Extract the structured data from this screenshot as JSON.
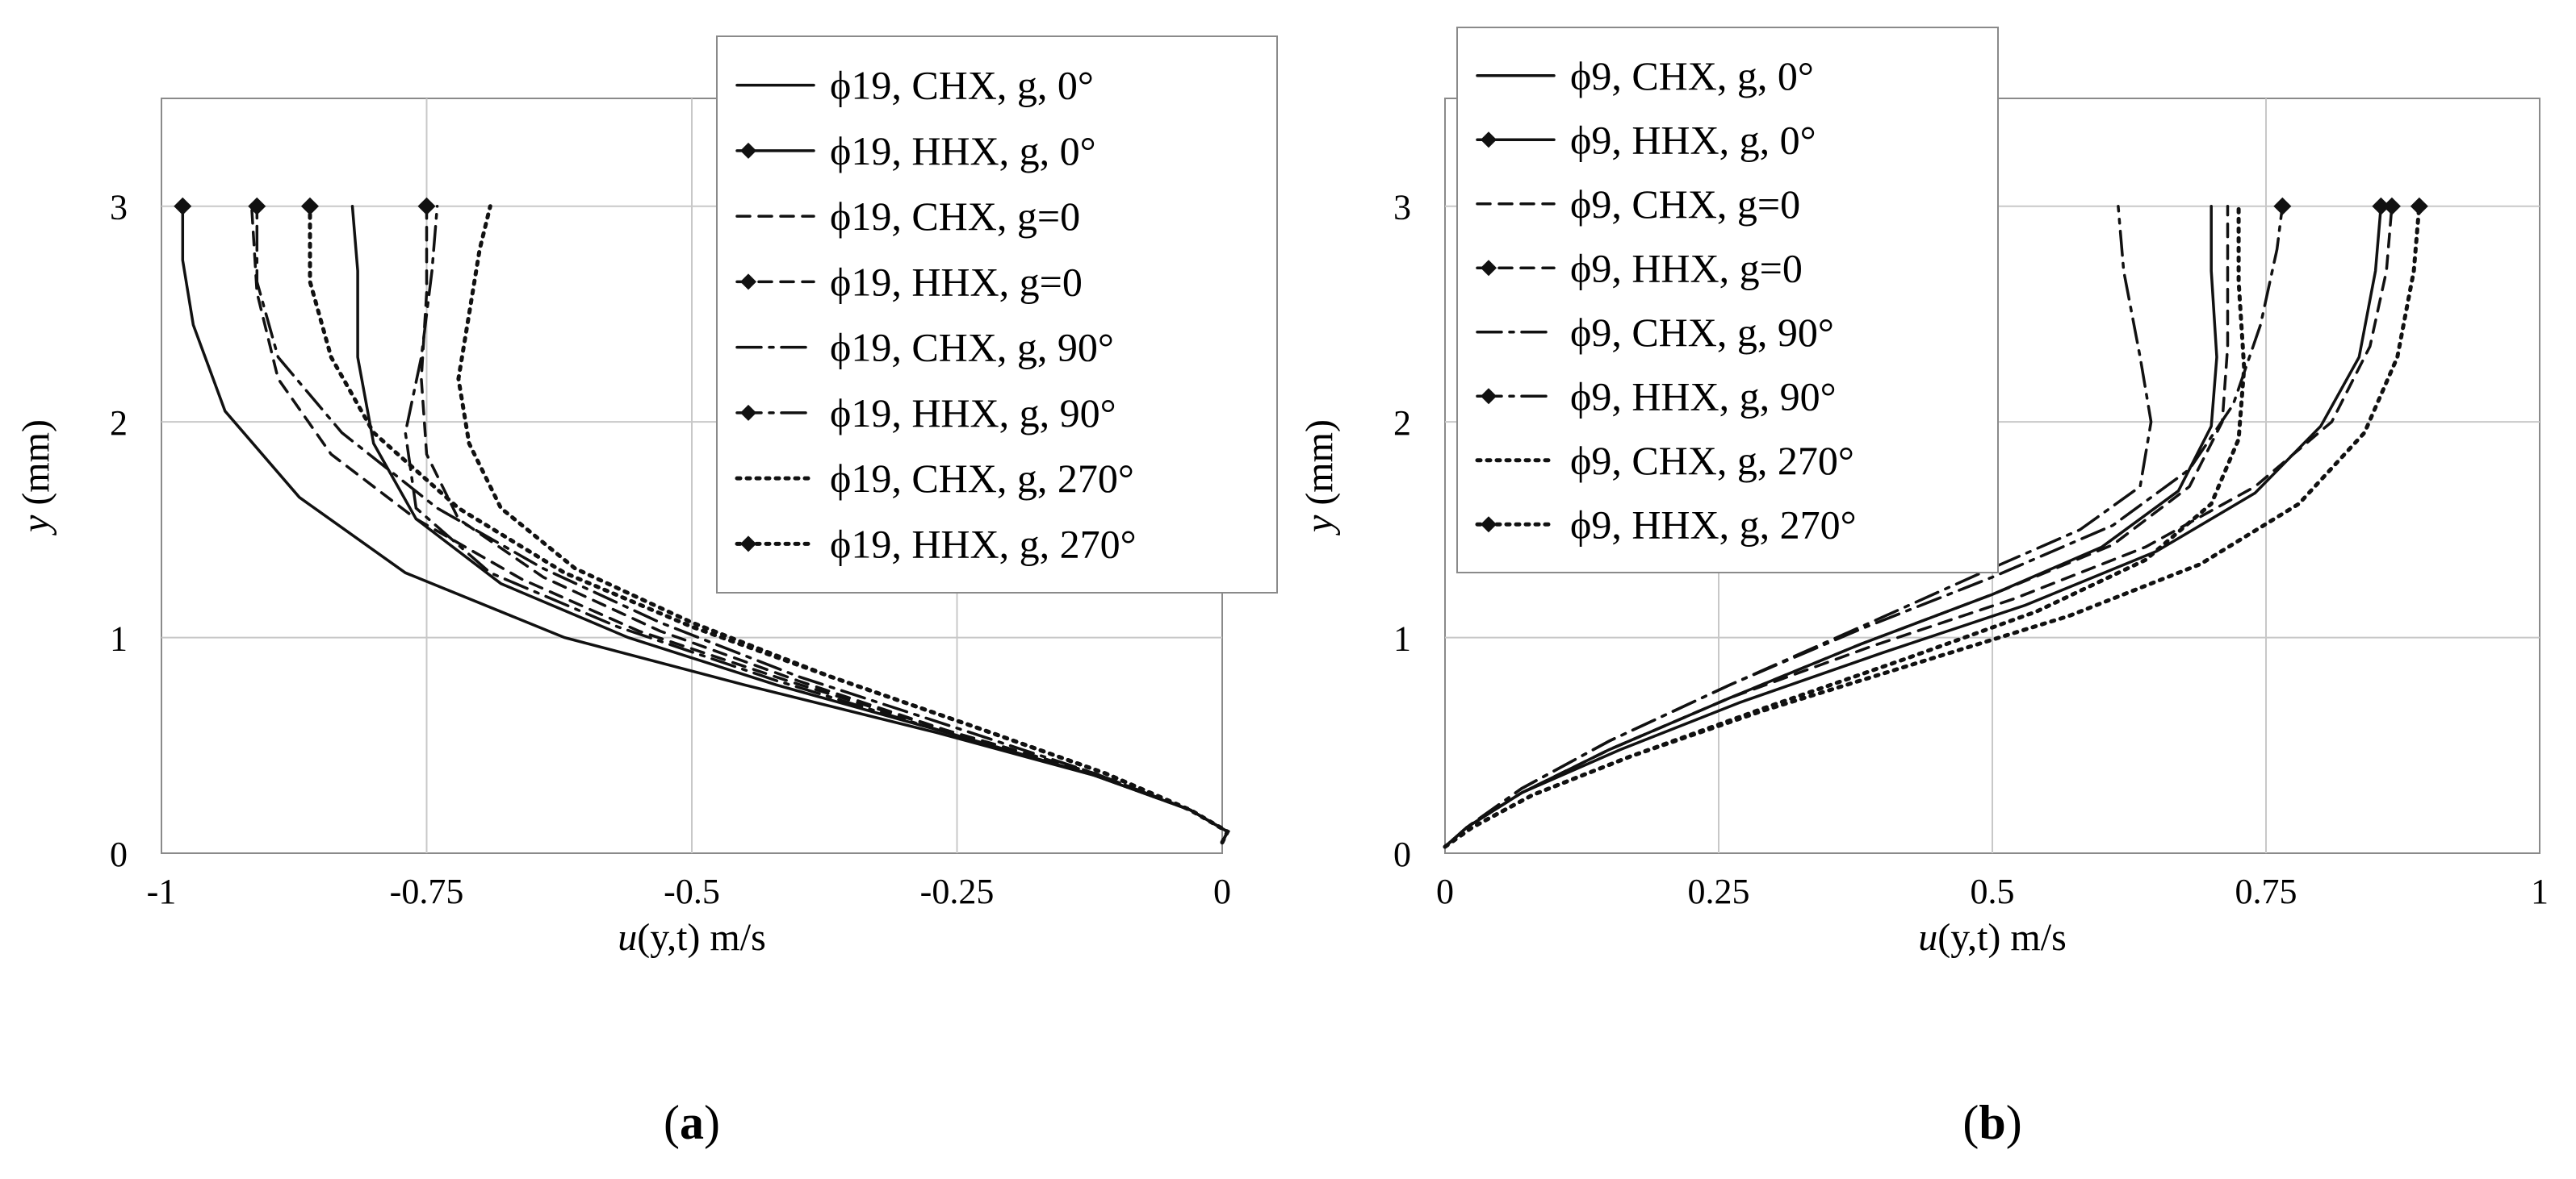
{
  "chart_data": [
    {
      "type": "line",
      "panel_label": "(a)",
      "panel_letter": "a",
      "xlabel": {
        "var": "u",
        "args": "(y,t)",
        "unit": " m/s"
      },
      "ylabel": {
        "var": "y",
        "unit": " (mm)"
      },
      "xlim": [
        -1,
        0
      ],
      "ylim": [
        0,
        3.5
      ],
      "xticks": [
        -1,
        -0.75,
        -0.5,
        -0.25,
        0
      ],
      "xtick_labels": [
        "-1",
        "-0.75",
        "-0.5",
        "-0.25",
        "0"
      ],
      "yticks": [
        0,
        1,
        2,
        3
      ],
      "ytick_labels": [
        "0",
        "1",
        "2",
        "3"
      ],
      "grid": true,
      "legend_position": "top-right",
      "series": [
        {
          "name": "ϕ19, CHX, g, 0°",
          "style": "solid",
          "marker": "none",
          "points": [
            [
              0,
              0.05
            ],
            [
              0.005,
              0.1
            ],
            [
              -0.03,
              0.2
            ],
            [
              -0.12,
              0.36
            ],
            [
              -0.26,
              0.56
            ],
            [
              -0.42,
              0.78
            ],
            [
              -0.56,
              1.0
            ],
            [
              -0.68,
              1.25
            ],
            [
              -0.76,
              1.55
            ],
            [
              -0.8,
              1.9
            ],
            [
              -0.815,
              2.3
            ],
            [
              -0.815,
              2.7
            ],
            [
              -0.82,
              3.0
            ]
          ]
        },
        {
          "name": "ϕ19, HHX, g, 0°",
          "style": "solid",
          "marker": "diamond",
          "points": [
            [
              0,
              0.05
            ],
            [
              0.005,
              0.1
            ],
            [
              -0.03,
              0.2
            ],
            [
              -0.12,
              0.36
            ],
            [
              -0.27,
              0.56
            ],
            [
              -0.45,
              0.78
            ],
            [
              -0.62,
              1.0
            ],
            [
              -0.77,
              1.3
            ],
            [
              -0.87,
              1.65
            ],
            [
              -0.94,
              2.05
            ],
            [
              -0.97,
              2.45
            ],
            [
              -0.98,
              2.75
            ],
            [
              -0.98,
              3.0
            ]
          ]
        },
        {
          "name": "ϕ19, CHX, g=0",
          "style": "dash",
          "marker": "none",
          "points": [
            [
              0,
              0.05
            ],
            [
              0.005,
              0.1
            ],
            [
              -0.03,
              0.2
            ],
            [
              -0.12,
              0.37
            ],
            [
              -0.26,
              0.57
            ],
            [
              -0.41,
              0.8
            ],
            [
              -0.55,
              1.03
            ],
            [
              -0.66,
              1.27
            ],
            [
              -0.76,
              1.55
            ],
            [
              -0.84,
              1.85
            ],
            [
              -0.89,
              2.2
            ],
            [
              -0.91,
              2.6
            ],
            [
              -0.915,
              3.0
            ]
          ]
        },
        {
          "name": "ϕ19, HHX, g=0",
          "style": "dash",
          "marker": "diamond",
          "points": [
            [
              0,
              0.05
            ],
            [
              0.005,
              0.1
            ],
            [
              -0.03,
              0.2
            ],
            [
              -0.12,
              0.37
            ],
            [
              -0.26,
              0.57
            ],
            [
              -0.4,
              0.8
            ],
            [
              -0.53,
              1.03
            ],
            [
              -0.64,
              1.28
            ],
            [
              -0.72,
              1.55
            ],
            [
              -0.75,
              1.85
            ],
            [
              -0.755,
              2.2
            ],
            [
              -0.75,
              2.6
            ],
            [
              -0.75,
              3.0
            ]
          ]
        },
        {
          "name": "ϕ19, CHX, g, 90°",
          "style": "dashdot",
          "marker": "none",
          "points": [
            [
              0,
              0.05
            ],
            [
              0.005,
              0.1
            ],
            [
              -0.03,
              0.2
            ],
            [
              -0.12,
              0.36
            ],
            [
              -0.26,
              0.56
            ],
            [
              -0.42,
              0.8
            ],
            [
              -0.57,
              1.05
            ],
            [
              -0.69,
              1.3
            ],
            [
              -0.76,
              1.6
            ],
            [
              -0.77,
              1.95
            ],
            [
              -0.755,
              2.3
            ],
            [
              -0.745,
              2.7
            ],
            [
              -0.74,
              3.0
            ]
          ]
        },
        {
          "name": "ϕ19, HHX, g, 90°",
          "style": "dashdot",
          "marker": "diamond",
          "points": [
            [
              0,
              0.05
            ],
            [
              0.005,
              0.1
            ],
            [
              -0.03,
              0.2
            ],
            [
              -0.12,
              0.37
            ],
            [
              -0.25,
              0.58
            ],
            [
              -0.4,
              0.82
            ],
            [
              -0.53,
              1.07
            ],
            [
              -0.64,
              1.32
            ],
            [
              -0.74,
              1.6
            ],
            [
              -0.83,
              1.95
            ],
            [
              -0.89,
              2.3
            ],
            [
              -0.91,
              2.65
            ],
            [
              -0.91,
              3.0
            ]
          ]
        },
        {
          "name": "ϕ19, CHX, g, 270°",
          "style": "dot",
          "marker": "none",
          "points": [
            [
              0,
              0.05
            ],
            [
              0.005,
              0.1
            ],
            [
              -0.03,
              0.2
            ],
            [
              -0.11,
              0.37
            ],
            [
              -0.23,
              0.58
            ],
            [
              -0.37,
              0.82
            ],
            [
              -0.5,
              1.07
            ],
            [
              -0.61,
              1.32
            ],
            [
              -0.68,
              1.6
            ],
            [
              -0.71,
              1.9
            ],
            [
              -0.72,
              2.2
            ],
            [
              -0.71,
              2.5
            ],
            [
              -0.7,
              2.8
            ],
            [
              -0.69,
              3.0
            ]
          ]
        },
        {
          "name": "ϕ19, HHX, g, 270°",
          "style": "dot",
          "marker": "diamond",
          "points": [
            [
              0,
              0.05
            ],
            [
              0.005,
              0.1
            ],
            [
              -0.03,
              0.2
            ],
            [
              -0.11,
              0.37
            ],
            [
              -0.23,
              0.58
            ],
            [
              -0.37,
              0.82
            ],
            [
              -0.5,
              1.05
            ],
            [
              -0.62,
              1.3
            ],
            [
              -0.72,
              1.6
            ],
            [
              -0.8,
              1.95
            ],
            [
              -0.84,
              2.3
            ],
            [
              -0.86,
              2.65
            ],
            [
              -0.86,
              3.0
            ]
          ]
        }
      ]
    },
    {
      "type": "line",
      "panel_label": "(b)",
      "panel_letter": "b",
      "xlabel": {
        "var": "u",
        "args": "(y,t)",
        "unit": " m/s"
      },
      "ylabel": {
        "var": "y",
        "unit": " (mm)"
      },
      "xlim": [
        0,
        1
      ],
      "ylim": [
        0,
        3.5
      ],
      "xticks": [
        0,
        0.25,
        0.5,
        0.75,
        1
      ],
      "xtick_labels": [
        "0",
        "0.25",
        "0.5",
        "0.75",
        "1"
      ],
      "yticks": [
        0,
        1,
        2,
        3
      ],
      "ytick_labels": [
        "0",
        "1",
        "2",
        "3"
      ],
      "grid": true,
      "legend_position": "top-left",
      "series": [
        {
          "name": "ϕ9, CHX, g, 0°",
          "style": "solid",
          "marker": "none",
          "points": [
            [
              0,
              0.03
            ],
            [
              0.02,
              0.12
            ],
            [
              0.07,
              0.28
            ],
            [
              0.15,
              0.48
            ],
            [
              0.26,
              0.72
            ],
            [
              0.38,
              0.97
            ],
            [
              0.5,
              1.2
            ],
            [
              0.6,
              1.42
            ],
            [
              0.67,
              1.68
            ],
            [
              0.7,
              1.98
            ],
            [
              0.705,
              2.3
            ],
            [
              0.7,
              2.7
            ],
            [
              0.7,
              3.0
            ]
          ]
        },
        {
          "name": "ϕ9, HHX, g, 0°",
          "style": "solid",
          "marker": "diamond",
          "points": [
            [
              0,
              0.03
            ],
            [
              0.02,
              0.12
            ],
            [
              0.07,
              0.28
            ],
            [
              0.16,
              0.48
            ],
            [
              0.27,
              0.7
            ],
            [
              0.4,
              0.93
            ],
            [
              0.53,
              1.15
            ],
            [
              0.65,
              1.4
            ],
            [
              0.74,
              1.67
            ],
            [
              0.8,
              1.98
            ],
            [
              0.835,
              2.3
            ],
            [
              0.85,
              2.7
            ],
            [
              0.855,
              3.0
            ]
          ]
        },
        {
          "name": "ϕ9, CHX, g=0",
          "style": "dash",
          "marker": "none",
          "points": [
            [
              0,
              0.03
            ],
            [
              0.02,
              0.12
            ],
            [
              0.07,
              0.28
            ],
            [
              0.15,
              0.48
            ],
            [
              0.26,
              0.72
            ],
            [
              0.38,
              0.97
            ],
            [
              0.5,
              1.2
            ],
            [
              0.61,
              1.43
            ],
            [
              0.68,
              1.7
            ],
            [
              0.71,
              2.0
            ],
            [
              0.715,
              2.35
            ],
            [
              0.715,
              2.7
            ],
            [
              0.715,
              3.0
            ]
          ]
        },
        {
          "name": "ϕ9, HHX, g=0",
          "style": "dash",
          "marker": "diamond",
          "points": [
            [
              0,
              0.03
            ],
            [
              0.02,
              0.12
            ],
            [
              0.07,
              0.28
            ],
            [
              0.15,
              0.48
            ],
            [
              0.26,
              0.72
            ],
            [
              0.39,
              0.96
            ],
            [
              0.52,
              1.18
            ],
            [
              0.64,
              1.42
            ],
            [
              0.74,
              1.7
            ],
            [
              0.81,
              2.0
            ],
            [
              0.845,
              2.35
            ],
            [
              0.86,
              2.7
            ],
            [
              0.865,
              3.0
            ]
          ]
        },
        {
          "name": "ϕ9, CHX, g, 90°",
          "style": "dashdot",
          "marker": "none",
          "points": [
            [
              0,
              0.03
            ],
            [
              0.02,
              0.12
            ],
            [
              0.07,
              0.3
            ],
            [
              0.15,
              0.52
            ],
            [
              0.26,
              0.78
            ],
            [
              0.38,
              1.05
            ],
            [
              0.49,
              1.3
            ],
            [
              0.58,
              1.5
            ],
            [
              0.635,
              1.7
            ],
            [
              0.645,
              2.0
            ],
            [
              0.635,
              2.3
            ],
            [
              0.62,
              2.7
            ],
            [
              0.615,
              3.0
            ]
          ]
        },
        {
          "name": "ϕ9, HHX, g, 90°",
          "style": "dashdot",
          "marker": "diamond",
          "points": [
            [
              0,
              0.03
            ],
            [
              0.02,
              0.12
            ],
            [
              0.07,
              0.3
            ],
            [
              0.15,
              0.52
            ],
            [
              0.26,
              0.78
            ],
            [
              0.38,
              1.04
            ],
            [
              0.5,
              1.28
            ],
            [
              0.61,
              1.52
            ],
            [
              0.68,
              1.78
            ],
            [
              0.72,
              2.08
            ],
            [
              0.745,
              2.45
            ],
            [
              0.76,
              2.8
            ],
            [
              0.765,
              3.0
            ]
          ]
        },
        {
          "name": "ϕ9, CHX, g, 270°",
          "style": "dot",
          "marker": "none",
          "points": [
            [
              0,
              0.03
            ],
            [
              0.025,
              0.12
            ],
            [
              0.08,
              0.27
            ],
            [
              0.17,
              0.45
            ],
            [
              0.29,
              0.67
            ],
            [
              0.42,
              0.9
            ],
            [
              0.54,
              1.12
            ],
            [
              0.64,
              1.36
            ],
            [
              0.7,
              1.62
            ],
            [
              0.725,
              1.92
            ],
            [
              0.73,
              2.25
            ],
            [
              0.725,
              2.65
            ],
            [
              0.725,
              3.0
            ]
          ]
        },
        {
          "name": "ϕ9, HHX, g, 270°",
          "style": "dot",
          "marker": "diamond",
          "points": [
            [
              0,
              0.03
            ],
            [
              0.025,
              0.12
            ],
            [
              0.08,
              0.27
            ],
            [
              0.17,
              0.45
            ],
            [
              0.29,
              0.66
            ],
            [
              0.43,
              0.88
            ],
            [
              0.57,
              1.1
            ],
            [
              0.69,
              1.34
            ],
            [
              0.78,
              1.62
            ],
            [
              0.84,
              1.95
            ],
            [
              0.87,
              2.3
            ],
            [
              0.885,
              2.7
            ],
            [
              0.89,
              3.0
            ]
          ]
        }
      ]
    }
  ]
}
